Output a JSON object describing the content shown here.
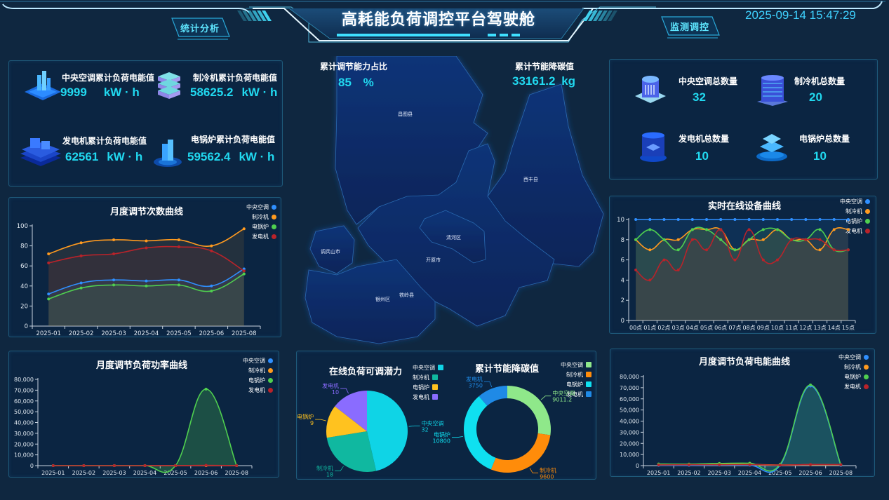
{
  "header": {
    "title": "高耗能负荷调控平台驾驶舱",
    "nav_left": "统计分析",
    "nav_right": "监测调控",
    "datetime": "2025-09-14 15:47:29"
  },
  "colors": {
    "accent": "#21d9f0",
    "background": "#0f2740",
    "panel": "#0b2542",
    "panel_border": "#1e5a7a",
    "series_ac": "#2f8fff",
    "series_chiller": "#ff9a1f",
    "series_boiler": "#4fcf4f",
    "series_generator": "#b8232a"
  },
  "energy_stats": {
    "items": [
      {
        "label": "中央空调累计负荷电能值",
        "value": "9999",
        "unit": "kW · h",
        "icon": "city-building-icon"
      },
      {
        "label": "制冷机累计负荷电能值",
        "value": "58625.2",
        "unit": "kW · h",
        "icon": "server-stack-icon"
      },
      {
        "label": "发电机累计负荷电能值",
        "value": "62561",
        "unit": "kW · h",
        "icon": "factory-platform-icon"
      },
      {
        "label": "电锅炉累计负荷电能值",
        "value": "59562.4",
        "unit": "kW · h",
        "icon": "tower-beacon-icon"
      }
    ]
  },
  "device_counts": {
    "items": [
      {
        "label": "中央空调总数量",
        "value": "32",
        "icon": "ac-unit-icon"
      },
      {
        "label": "制冷机总数量",
        "value": "20",
        "icon": "chiller-cabinet-icon"
      },
      {
        "label": "发电机总数量",
        "value": "10",
        "icon": "generator-cylinder-icon"
      },
      {
        "label": "电锅炉总数量",
        "value": "10",
        "icon": "boiler-layers-icon"
      }
    ]
  },
  "center": {
    "ratio_label": "累计调节能力占比",
    "ratio_value": "85",
    "ratio_unit": "%",
    "carbon_label": "累计节能降碳值",
    "carbon_value": "33161.2",
    "carbon_unit": "kg",
    "map_regions": [
      "昌图县",
      "西丰县",
      "清河区",
      "开原市",
      "调兵山市",
      "银州区",
      "铁岭县"
    ]
  },
  "legend_series": [
    "中央空调",
    "制冷机",
    "电锅炉",
    "发电机"
  ],
  "chart_data": [
    {
      "id": "monthly_count",
      "type": "line",
      "title": "月度调节次数曲线",
      "categories": [
        "2025-01",
        "2025-02",
        "2025-03",
        "2025-04",
        "2025-05",
        "2025-06",
        "2025-08"
      ],
      "ylim": [
        0,
        100
      ],
      "yticks": [
        0,
        20,
        40,
        60,
        80,
        100
      ],
      "series": [
        {
          "name": "中央空调",
          "color": "#2f8fff",
          "values": [
            32,
            43,
            46,
            45,
            46,
            40,
            57
          ]
        },
        {
          "name": "制冷机",
          "color": "#ff9a1f",
          "values": [
            72,
            83,
            86,
            85,
            86,
            80,
            97
          ]
        },
        {
          "name": "电锅炉",
          "color": "#4fcf4f",
          "values": [
            27,
            38,
            41,
            40,
            41,
            35,
            52
          ]
        },
        {
          "name": "发电机",
          "color": "#b8232a",
          "values": [
            63,
            70,
            72,
            78,
            79,
            75,
            55
          ]
        }
      ]
    },
    {
      "id": "realtime_online",
      "type": "line",
      "title": "实时在线设备曲线",
      "categories": [
        "00点",
        "01点",
        "02点",
        "03点",
        "04点",
        "05点",
        "06点",
        "07点",
        "08点",
        "09点",
        "10点",
        "11点",
        "12点",
        "13点",
        "14点",
        "15点"
      ],
      "ylim": [
        0,
        10
      ],
      "yticks": [
        0,
        2,
        4,
        6,
        8,
        10
      ],
      "series": [
        {
          "name": "中央空调",
          "color": "#2f8fff",
          "values": [
            10,
            10,
            10,
            10,
            10,
            10,
            10,
            10,
            10,
            10,
            10,
            10,
            10,
            10,
            10,
            10
          ]
        },
        {
          "name": "制冷机",
          "color": "#ff9a1f",
          "values": [
            8,
            7,
            8,
            8,
            9,
            9,
            9,
            7,
            8,
            8,
            9,
            8,
            8,
            7,
            9,
            9
          ]
        },
        {
          "name": "电锅炉",
          "color": "#4fcf4f",
          "values": [
            8,
            9,
            8,
            7,
            9,
            9,
            8,
            7,
            8,
            9,
            9,
            8,
            8,
            9,
            7,
            7
          ]
        },
        {
          "name": "发电机",
          "color": "#b8232a",
          "values": [
            5,
            4,
            6,
            5,
            8,
            7,
            9,
            6,
            9,
            6,
            6,
            8,
            8,
            8,
            7,
            7
          ]
        }
      ]
    },
    {
      "id": "monthly_power",
      "type": "line",
      "title": "月度调节负荷功率曲线",
      "categories": [
        "2025-01",
        "2025-02",
        "2025-03",
        "2025-04",
        "2025-05",
        "2025-06",
        "2025-08"
      ],
      "ylim": [
        0,
        80000
      ],
      "yticks": [
        0,
        10000,
        20000,
        30000,
        40000,
        50000,
        60000,
        70000,
        80000
      ],
      "ytick_labels": [
        "0",
        "10,000",
        "20,000",
        "30,000",
        "40,000",
        "50,000",
        "60,000",
        "70,000",
        "80,000"
      ],
      "series": [
        {
          "name": "中央空调",
          "color": "#2f8fff",
          "values": [
            0,
            0,
            0,
            0,
            0,
            0,
            0
          ]
        },
        {
          "name": "制冷机",
          "color": "#ff9a1f",
          "values": [
            0,
            0,
            0,
            0,
            0,
            0,
            0
          ]
        },
        {
          "name": "电锅炉",
          "color": "#4fcf4f",
          "values": [
            0,
            0,
            0,
            0,
            0,
            71000,
            0
          ]
        },
        {
          "name": "发电机",
          "color": "#b8232a",
          "values": [
            0,
            0,
            0,
            0,
            0,
            300,
            0
          ]
        }
      ]
    },
    {
      "id": "online_potential",
      "type": "pie",
      "title": "在线负荷可调潜力",
      "labels": [
        "中央空调",
        "制冷机",
        "电锅炉",
        "发电机"
      ],
      "values": [
        32,
        18,
        9,
        10
      ],
      "colors": [
        "#0fd4e6",
        "#10b8a0",
        "#ffc21f",
        "#8a6cff"
      ]
    },
    {
      "id": "carbon_saving",
      "type": "pie",
      "subtype": "donut",
      "title": "累计节能降碳值",
      "labels": [
        "中央空调",
        "制冷机",
        "电锅炉",
        "发电机"
      ],
      "values": [
        9011.2,
        9600,
        10800,
        3750
      ],
      "colors": [
        "#8fe88a",
        "#ff8c0a",
        "#0fe0f0",
        "#1f8ae6"
      ]
    },
    {
      "id": "monthly_energy",
      "type": "line",
      "title": "月度调节负荷电能曲线",
      "categories": [
        "2025-01",
        "2025-02",
        "2025-03",
        "2025-04",
        "2025-05",
        "2025-06",
        "2025-08"
      ],
      "ylim": [
        0,
        80000
      ],
      "yticks": [
        0,
        10000,
        20000,
        30000,
        40000,
        50000,
        60000,
        70000,
        80000
      ],
      "ytick_labels": [
        "0",
        "10,000",
        "20,000",
        "30,000",
        "40,000",
        "50,000",
        "60,000",
        "70,000",
        "80,000"
      ],
      "series": [
        {
          "name": "中央空调",
          "color": "#2f8fff",
          "values": [
            300,
            300,
            500,
            400,
            300,
            71500,
            200
          ]
        },
        {
          "name": "制冷机",
          "color": "#ff9a1f",
          "values": [
            800,
            900,
            1200,
            1100,
            600,
            900,
            800
          ]
        },
        {
          "name": "电锅炉",
          "color": "#4fcf4f",
          "values": [
            1500,
            1400,
            2000,
            2200,
            1200,
            72500,
            800
          ]
        },
        {
          "name": "发电机",
          "color": "#b8232a",
          "values": [
            700,
            800,
            800,
            900,
            500,
            1000,
            900
          ]
        }
      ]
    }
  ]
}
